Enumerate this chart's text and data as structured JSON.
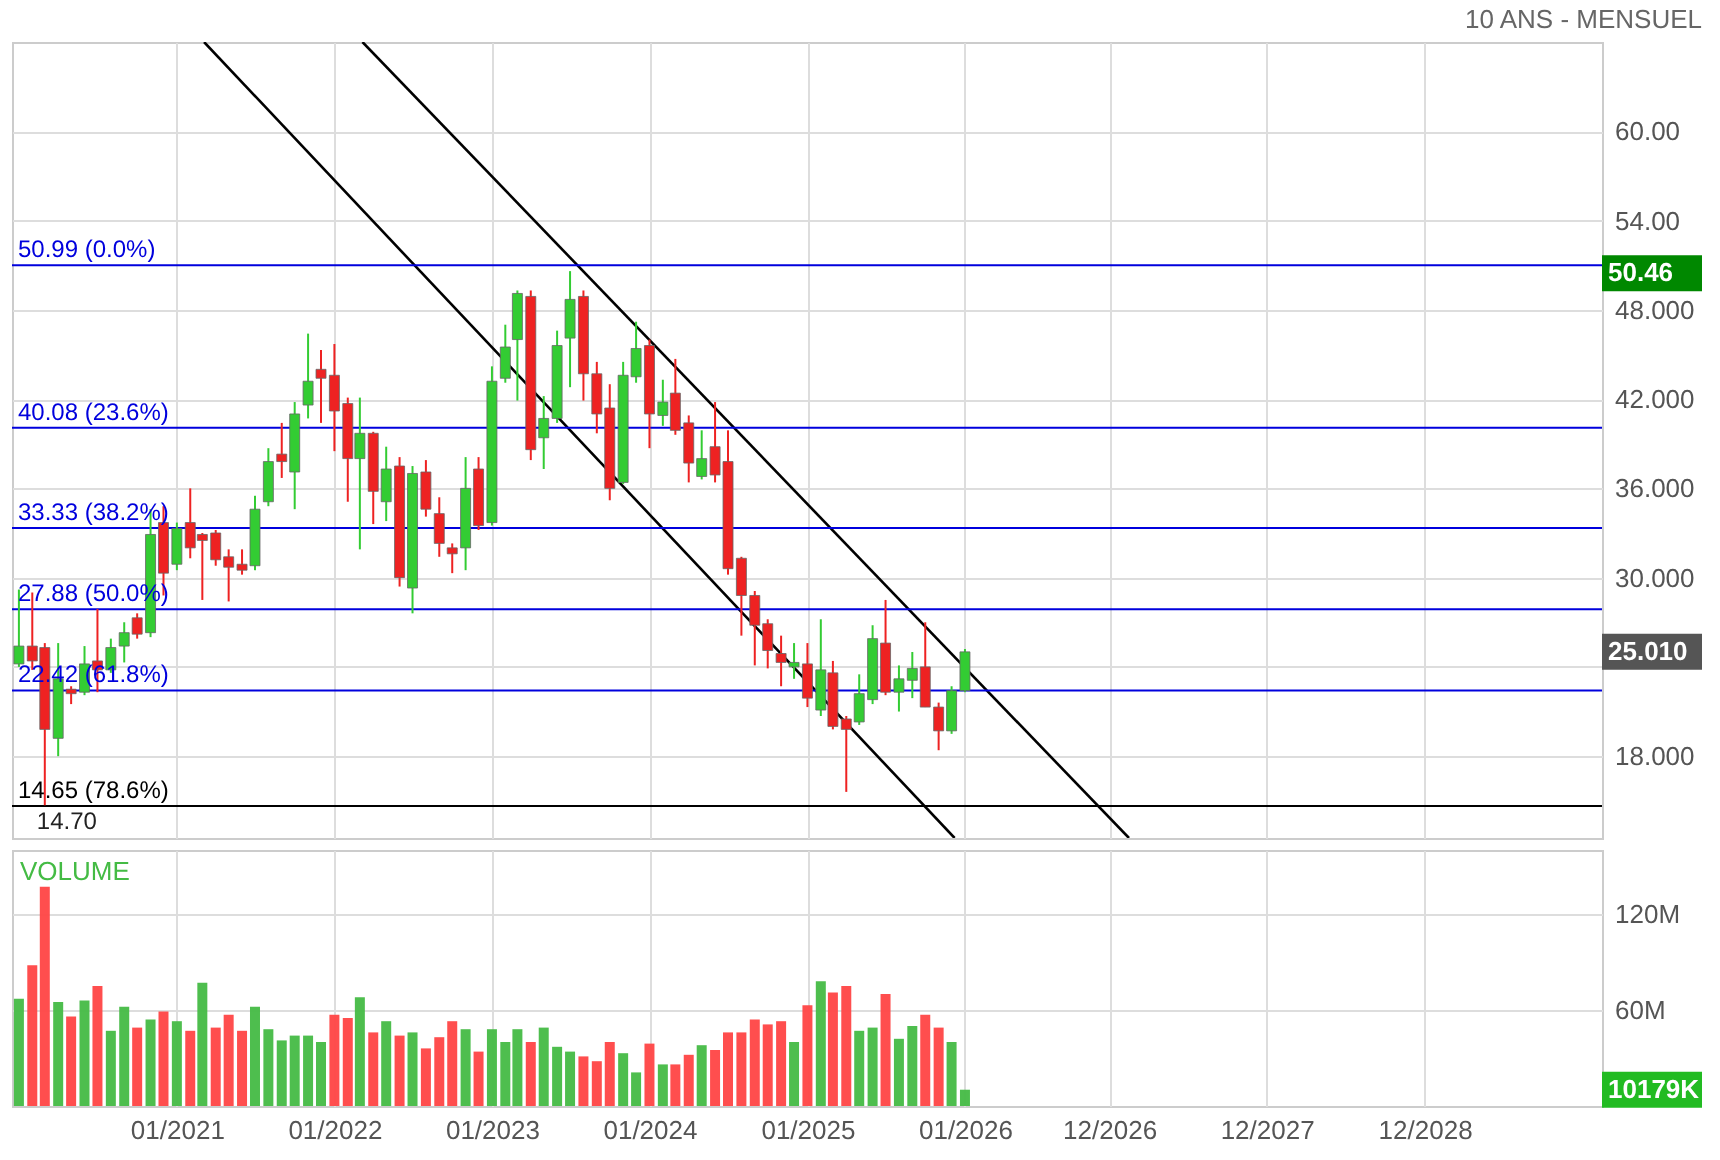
{
  "chart_data": [
    {
      "type": "candlestick",
      "title": "10 ANS - MENSUEL",
      "x": [
        "2020-01",
        "2020-02",
        "2020-03",
        "2020-04",
        "2020-05",
        "2020-06",
        "2020-07",
        "2020-08",
        "2020-09",
        "2020-10",
        "2020-11",
        "2020-12",
        "2021-01",
        "2021-02",
        "2021-03",
        "2021-04",
        "2021-05",
        "2021-06",
        "2021-07",
        "2021-08",
        "2021-09",
        "2021-10",
        "2021-11",
        "2021-12",
        "2022-01",
        "2022-02",
        "2022-03",
        "2022-04",
        "2022-05",
        "2022-06",
        "2022-07",
        "2022-08",
        "2022-09",
        "2022-10",
        "2022-11",
        "2022-12",
        "2023-01",
        "2023-02",
        "2023-03",
        "2023-04",
        "2023-05",
        "2023-06",
        "2023-07",
        "2023-08",
        "2023-09",
        "2023-10",
        "2023-11",
        "2023-12",
        "2024-01",
        "2024-02",
        "2024-03",
        "2024-04",
        "2024-05",
        "2024-06",
        "2024-07",
        "2024-08",
        "2024-09",
        "2024-10",
        "2024-11",
        "2024-12",
        "2025-01",
        "2025-02",
        "2025-03",
        "2025-04",
        "2025-05",
        "2025-06",
        "2025-07",
        "2025-08",
        "2025-09",
        "2025-10",
        "2025-11",
        "2025-12",
        "2026-01"
      ],
      "ohlc": [
        [
          24.2,
          29.2,
          24.0,
          25.4
        ],
        [
          25.4,
          29.0,
          23.8,
          24.4
        ],
        [
          25.3,
          25.6,
          14.7,
          19.8
        ],
        [
          19.2,
          25.6,
          18.0,
          23.2
        ],
        [
          22.5,
          22.7,
          21.5,
          22.2
        ],
        [
          22.3,
          25.4,
          22.1,
          24.2
        ],
        [
          24.4,
          27.9,
          22.3,
          23.8
        ],
        [
          23.8,
          25.9,
          23.6,
          25.3
        ],
        [
          25.4,
          27.0,
          24.3,
          26.3
        ],
        [
          27.3,
          27.6,
          25.9,
          26.2
        ],
        [
          26.3,
          34.6,
          26.0,
          32.9
        ],
        [
          33.7,
          34.8,
          28.8,
          30.3
        ],
        [
          30.9,
          33.7,
          30.5,
          33.3
        ],
        [
          33.7,
          36.0,
          31.3,
          32.0
        ],
        [
          32.9,
          33.0,
          28.5,
          32.5
        ],
        [
          33.0,
          33.2,
          30.8,
          31.2
        ],
        [
          31.4,
          31.9,
          28.4,
          30.7
        ],
        [
          30.9,
          31.9,
          30.2,
          30.5
        ],
        [
          30.8,
          35.5,
          30.5,
          34.6
        ],
        [
          35.1,
          38.7,
          34.8,
          37.8
        ],
        [
          38.3,
          40.4,
          36.7,
          37.8
        ],
        [
          37.1,
          41.8,
          34.6,
          41.0
        ],
        [
          41.6,
          46.4,
          40.7,
          43.2
        ],
        [
          44.0,
          45.3,
          40.4,
          43.4
        ],
        [
          43.6,
          45.7,
          38.5,
          41.2
        ],
        [
          41.7,
          42.1,
          35.1,
          38.0
        ],
        [
          38.0,
          42.1,
          31.9,
          39.7
        ],
        [
          39.7,
          39.8,
          33.6,
          35.8
        ],
        [
          35.1,
          38.8,
          33.8,
          37.3
        ],
        [
          37.5,
          38.1,
          29.4,
          30.0
        ],
        [
          29.3,
          37.5,
          27.6,
          37.0
        ],
        [
          37.1,
          37.9,
          34.1,
          34.6
        ],
        [
          34.3,
          35.4,
          31.4,
          32.3
        ],
        [
          32.0,
          32.3,
          30.3,
          31.6
        ],
        [
          32.0,
          38.1,
          30.5,
          36.0
        ],
        [
          37.3,
          38.1,
          33.2,
          33.5
        ],
        [
          33.7,
          44.2,
          33.5,
          43.2
        ],
        [
          43.4,
          47.0,
          43.1,
          45.5
        ],
        [
          46.0,
          49.3,
          41.9,
          49.1
        ],
        [
          48.9,
          49.3,
          37.9,
          38.6
        ],
        [
          39.4,
          42.2,
          37.3,
          40.7
        ],
        [
          40.7,
          46.6,
          40.4,
          45.6
        ],
        [
          46.1,
          50.6,
          42.8,
          48.7
        ],
        [
          48.9,
          49.3,
          41.9,
          43.7
        ],
        [
          43.7,
          44.5,
          39.7,
          41.0
        ],
        [
          41.4,
          43.0,
          35.2,
          36.0
        ],
        [
          36.4,
          44.5,
          36.3,
          43.6
        ],
        [
          43.5,
          47.2,
          43.1,
          45.4
        ],
        [
          45.6,
          46.0,
          38.7,
          41.0
        ],
        [
          40.9,
          43.3,
          40.2,
          41.8
        ],
        [
          42.4,
          44.7,
          39.6,
          39.9
        ],
        [
          40.4,
          40.9,
          36.4,
          37.7
        ],
        [
          36.8,
          39.9,
          36.6,
          38.0
        ],
        [
          38.8,
          41.8,
          36.4,
          36.9
        ],
        [
          37.8,
          39.9,
          30.2,
          30.6
        ],
        [
          31.3,
          31.4,
          26.1,
          28.8
        ],
        [
          28.8,
          29.1,
          24.1,
          26.8
        ],
        [
          26.9,
          27.2,
          23.9,
          25.1
        ],
        [
          24.9,
          26.1,
          22.7,
          24.3
        ],
        [
          24.0,
          25.6,
          23.2,
          24.3
        ],
        [
          24.2,
          25.6,
          21.3,
          21.9
        ],
        [
          21.1,
          27.2,
          20.7,
          23.8
        ],
        [
          23.6,
          24.4,
          19.8,
          20.0
        ],
        [
          20.5,
          20.7,
          15.6,
          19.8
        ],
        [
          20.3,
          23.5,
          20.1,
          22.2
        ],
        [
          21.8,
          26.8,
          21.5,
          25.9
        ],
        [
          25.6,
          28.5,
          22.1,
          22.3
        ],
        [
          22.3,
          24.1,
          21.0,
          23.2
        ],
        [
          23.1,
          25.0,
          21.9,
          23.9
        ],
        [
          24.0,
          27.0,
          21.3,
          21.3
        ],
        [
          21.3,
          21.6,
          18.4,
          19.7
        ],
        [
          19.7,
          22.7,
          19.5,
          22.4
        ],
        [
          22.4,
          25.2,
          22.3,
          25.01
        ]
      ],
      "colors": [
        "#33cc33",
        "#ee2222",
        "#ee2222",
        "#33cc33",
        "#ee2222",
        "#33cc33",
        "#ee2222",
        "#33cc33",
        "#33cc33",
        "#ee2222",
        "#33cc33",
        "#ee2222",
        "#33cc33",
        "#ee2222",
        "#ee2222",
        "#ee2222",
        "#ee2222",
        "#ee2222",
        "#33cc33",
        "#33cc33",
        "#ee2222",
        "#33cc33",
        "#33cc33",
        "#ee2222",
        "#ee2222",
        "#ee2222",
        "#33cc33",
        "#ee2222",
        "#33cc33",
        "#ee2222",
        "#33cc33",
        "#ee2222",
        "#ee2222",
        "#ee2222",
        "#33cc33",
        "#ee2222",
        "#33cc33",
        "#33cc33",
        "#33cc33",
        "#ee2222",
        "#33cc33",
        "#33cc33",
        "#33cc33",
        "#ee2222",
        "#ee2222",
        "#ee2222",
        "#33cc33",
        "#33cc33",
        "#ee2222",
        "#33cc33",
        "#ee2222",
        "#ee2222",
        "#33cc33",
        "#ee2222",
        "#ee2222",
        "#ee2222",
        "#ee2222",
        "#ee2222",
        "#ee2222",
        "#33cc33",
        "#ee2222",
        "#33cc33",
        "#ee2222",
        "#ee2222",
        "#33cc33",
        "#33cc33",
        "#ee2222",
        "#33cc33",
        "#33cc33",
        "#ee2222",
        "#ee2222",
        "#33cc33",
        "#33cc33"
      ],
      "series": [
        {
          "type": "line",
          "color": "#000000",
          "x": [
            "2021-03-05",
            "2025-12-08"
          ],
          "values": [
            66.0,
            12.5
          ]
        },
        {
          "type": "line",
          "color": "#000000",
          "x": [
            "2022-03-07",
            "2027-01-16"
          ],
          "values": [
            66.0,
            12.5
          ]
        }
      ],
      "ref_lines": [
        {
          "axis": "y",
          "value": 50.99,
          "label": "50.99  (0.0%)",
          "color": "#0000dd"
        },
        {
          "axis": "y",
          "value": 40.08,
          "label": "40.08  (23.6%)",
          "color": "#0000dd"
        },
        {
          "axis": "y",
          "value": 33.33,
          "label": "33.33  (38.2%)",
          "color": "#0000dd"
        },
        {
          "axis": "y",
          "value": 27.88,
          "label": "27.88  (50.0%)",
          "color": "#0000dd"
        },
        {
          "axis": "y",
          "value": 22.42,
          "label": "22.42  (61.8%)",
          "color": "#0000dd"
        },
        {
          "axis": "y",
          "value": 14.65,
          "label": "14.65  (78.6%)",
          "color": "#000000"
        }
      ],
      "annotations": [
        {
          "text": "14.70",
          "x": "2020-03",
          "y": 14.7
        },
        "50.46",
        "25.010"
      ],
      "xlim": [
        "2019-12-16",
        "2030-01-16"
      ],
      "xticks": [
        {
          "value": "2021-01",
          "label": null
        },
        {
          "value": "2022-01",
          "label": null
        },
        {
          "value": "2023-01",
          "label": null
        },
        {
          "value": "2024-01",
          "label": null
        },
        {
          "value": "2025-01",
          "label": null
        },
        {
          "value": "2026-01",
          "label": null
        },
        {
          "value": "2026-12",
          "label": null
        },
        {
          "value": "2027-12",
          "label": null
        },
        {
          "value": "2028-12",
          "label": null
        }
      ],
      "ylim": [
        12.5,
        66.0
      ],
      "yticks": [
        {
          "value": 18,
          "label": "18.000"
        },
        {
          "value": 24,
          "label": null
        },
        {
          "value": 30,
          "label": "30.000"
        },
        {
          "value": 36,
          "label": "36.000"
        },
        {
          "value": 42,
          "label": "42.000"
        },
        {
          "value": 48,
          "label": "48.000"
        },
        {
          "value": 54,
          "label": "54.00"
        },
        {
          "value": 60,
          "label": "60.00"
        }
      ],
      "grid": true,
      "tick_labels": "y"
    },
    {
      "type": "bar",
      "title": "VOLUME",
      "x": [
        "2020-01",
        "2020-02",
        "2020-03",
        "2020-04",
        "2020-05",
        "2020-06",
        "2020-07",
        "2020-08",
        "2020-09",
        "2020-10",
        "2020-11",
        "2020-12",
        "2021-01",
        "2021-02",
        "2021-03",
        "2021-04",
        "2021-05",
        "2021-06",
        "2021-07",
        "2021-08",
        "2021-09",
        "2021-10",
        "2021-11",
        "2021-12",
        "2022-01",
        "2022-02",
        "2022-03",
        "2022-04",
        "2022-05",
        "2022-06",
        "2022-07",
        "2022-08",
        "2022-09",
        "2022-10",
        "2022-11",
        "2022-12",
        "2023-01",
        "2023-02",
        "2023-03",
        "2023-04",
        "2023-05",
        "2023-06",
        "2023-07",
        "2023-08",
        "2023-09",
        "2023-10",
        "2023-11",
        "2023-12",
        "2024-01",
        "2024-02",
        "2024-03",
        "2024-04",
        "2024-05",
        "2024-06",
        "2024-07",
        "2024-08",
        "2024-09",
        "2024-10",
        "2024-11",
        "2024-12",
        "2025-01",
        "2025-02",
        "2025-03",
        "2025-04",
        "2025-05",
        "2025-06",
        "2025-07",
        "2025-08",
        "2025-09",
        "2025-10",
        "2025-11",
        "2025-12",
        "2026-01"
      ],
      "values": [
        67,
        88,
        137,
        65,
        56,
        66,
        75,
        47,
        62,
        49,
        54,
        59,
        53,
        47,
        77,
        49,
        57,
        47,
        62,
        48,
        41,
        44,
        44,
        40,
        57,
        55,
        68,
        46,
        53,
        44,
        46,
        36,
        43,
        53,
        48,
        34,
        48,
        40,
        48,
        40,
        49,
        37,
        34,
        31,
        28,
        40,
        33,
        21,
        39,
        26,
        26,
        32,
        38,
        35,
        46,
        46,
        54,
        51,
        53,
        40,
        63,
        78,
        71,
        75,
        47,
        49,
        70,
        42,
        50,
        57,
        49,
        40,
        10.179
      ],
      "colors": [
        "#44bb44",
        "#ff4444",
        "#ff4444",
        "#44bb44",
        "#ff4444",
        "#44bb44",
        "#ff4444",
        "#44bb44",
        "#44bb44",
        "#ff4444",
        "#44bb44",
        "#ff4444",
        "#44bb44",
        "#ff4444",
        "#44bb44",
        "#ff4444",
        "#ff4444",
        "#ff4444",
        "#44bb44",
        "#44bb44",
        "#44bb44",
        "#44bb44",
        "#44bb44",
        "#44bb44",
        "#ff4444",
        "#ff4444",
        "#44bb44",
        "#ff4444",
        "#44bb44",
        "#ff4444",
        "#44bb44",
        "#ff4444",
        "#ff4444",
        "#ff4444",
        "#44bb44",
        "#ff4444",
        "#44bb44",
        "#44bb44",
        "#44bb44",
        "#ff4444",
        "#44bb44",
        "#44bb44",
        "#44bb44",
        "#ff4444",
        "#ff4444",
        "#ff4444",
        "#44bb44",
        "#44bb44",
        "#ff4444",
        "#44bb44",
        "#ff4444",
        "#ff4444",
        "#44bb44",
        "#ff4444",
        "#ff4444",
        "#ff4444",
        "#ff4444",
        "#ff4444",
        "#ff4444",
        "#44bb44",
        "#ff4444",
        "#44bb44",
        "#ff4444",
        "#ff4444",
        "#44bb44",
        "#44bb44",
        "#ff4444",
        "#44bb44",
        "#44bb44",
        "#ff4444",
        "#ff4444",
        "#44bb44",
        "#44bb44"
      ],
      "annotations": [
        "10179K"
      ],
      "xlim": [
        "2019-12-16",
        "2030-01-16"
      ],
      "xticks": [
        {
          "value": "2021-01",
          "label": "01/2021"
        },
        {
          "value": "2022-01",
          "label": "01/2022"
        },
        {
          "value": "2023-01",
          "label": "01/2023"
        },
        {
          "value": "2024-01",
          "label": "01/2024"
        },
        {
          "value": "2025-01",
          "label": "01/2025"
        },
        {
          "value": "2026-01",
          "label": "01/2026"
        },
        {
          "value": "2026-12",
          "label": "12/2026"
        },
        {
          "value": "2027-12",
          "label": "12/2027"
        },
        {
          "value": "2028-12",
          "label": "12/2028"
        }
      ],
      "ylim": [
        0,
        160
      ],
      "yticks": [
        {
          "value": 60,
          "label": "60M"
        },
        {
          "value": 120,
          "label": "120M"
        }
      ],
      "grid": true
    }
  ]
}
